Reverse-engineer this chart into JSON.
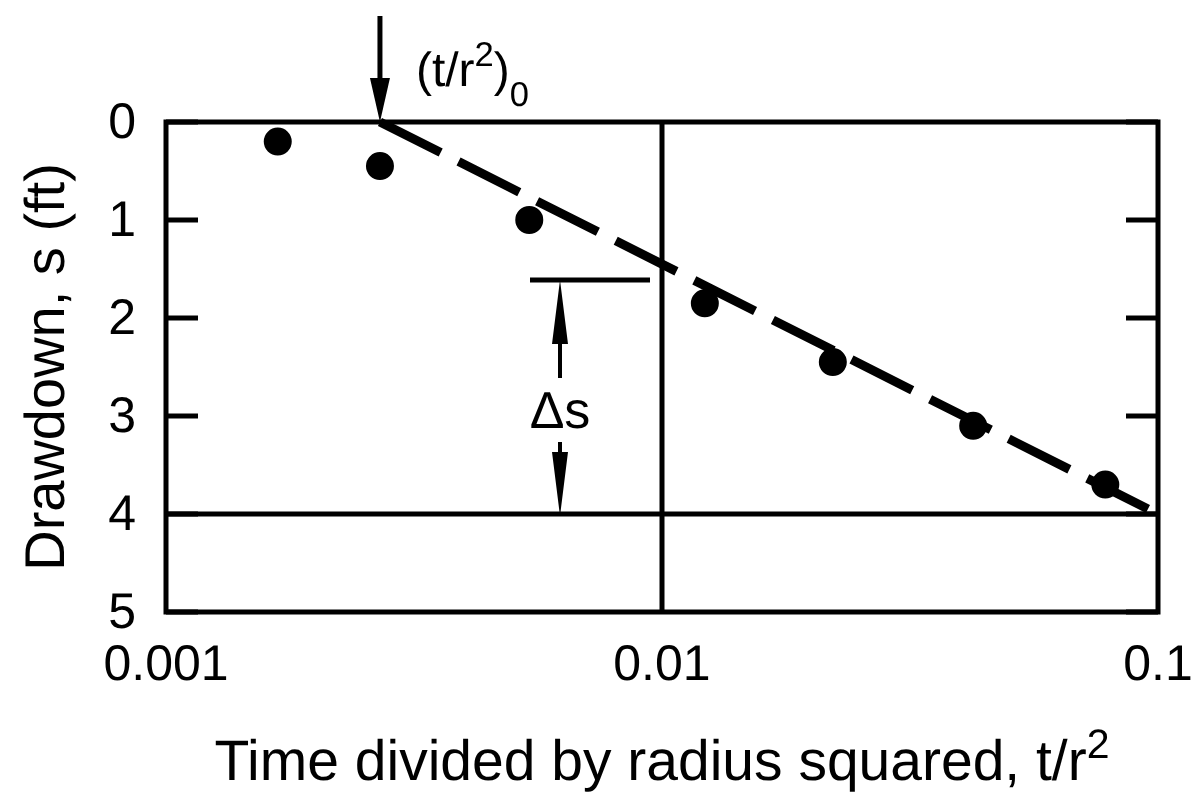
{
  "chart_data": {
    "type": "scatter",
    "xlabel": "Time divided by radius squared, t/r$^{2}$",
    "ylabel": "Drawdown, s (ft)",
    "log": "x",
    "xlim": [
      0.001,
      0.1
    ],
    "xticks": [
      0.001,
      0.01,
      0.1
    ],
    "ylim": [
      5,
      0
    ],
    "yticks": [
      0,
      1,
      2,
      3,
      4,
      5
    ],
    "series": [
      {
        "x": [
          0.00168,
          0.0027,
          0.0054,
          0.0122,
          0.0221,
          0.0424,
          0.0783
        ],
        "values": [
          0.2,
          0.45,
          1.0,
          1.85,
          2.45,
          3.1,
          3.7
        ],
        "color": "#000000",
        "marker": "circle"
      },
      {
        "type": "line",
        "x": [
          0.0027,
          0.1
        ],
        "values": [
          0,
          4
        ],
        "color": "#000000",
        "line_style": "dashed",
        "marker": "none"
      }
    ],
    "ref_lines": [
      {
        "axis": "x",
        "value": 0.01
      },
      {
        "axis": "y",
        "value": 4
      }
    ],
    "annotations": [
      {
        "text": "(t/r$^{2}$)$_{0}$",
        "x": 0.0027,
        "y": 0
      },
      "Δs"
    ]
  }
}
